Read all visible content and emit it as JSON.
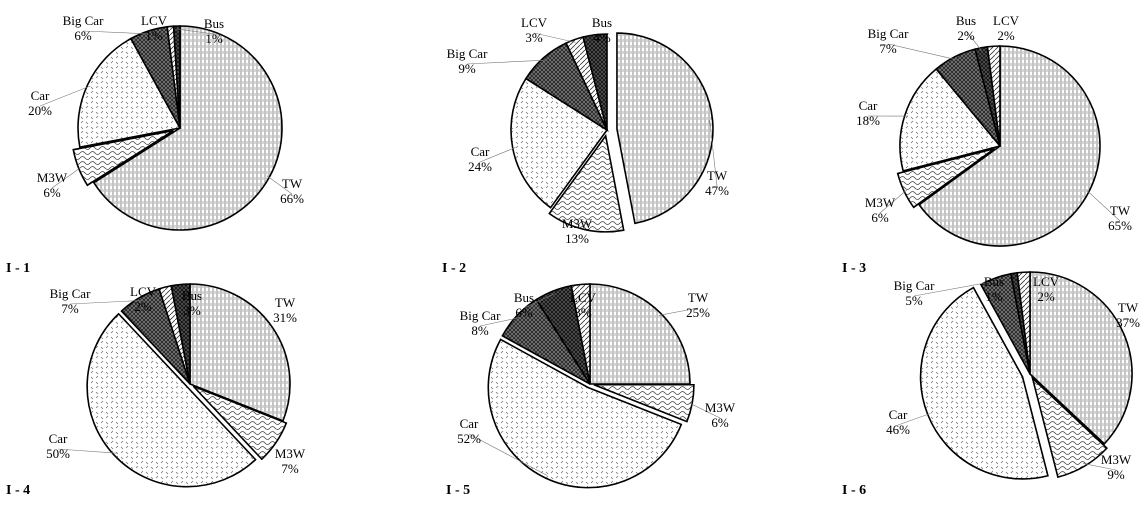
{
  "chart_data": [
    {
      "type": "pie",
      "panel_label": "I - 1",
      "categories": [
        "TW",
        "M3W",
        "Car",
        "Big Car",
        "LCV",
        "Bus"
      ],
      "values": [
        66,
        6,
        20,
        6,
        1,
        1
      ],
      "labels": [
        "66%",
        "6%",
        "20%",
        "6%",
        "1%",
        "1%"
      ]
    },
    {
      "type": "pie",
      "panel_label": "I - 2",
      "categories": [
        "TW",
        "M3W",
        "Car",
        "Big Car",
        "LCV",
        "Bus"
      ],
      "values": [
        47,
        13,
        24,
        9,
        3,
        4
      ],
      "labels": [
        "47%",
        "13%",
        "24%",
        "9%",
        "3%",
        "4%"
      ]
    },
    {
      "type": "pie",
      "panel_label": "I - 3",
      "categories": [
        "TW",
        "M3W",
        "Car",
        "Big Car",
        "Bus",
        "LCV"
      ],
      "values": [
        65,
        6,
        18,
        7,
        2,
        2
      ],
      "labels": [
        "65%",
        "6%",
        "18%",
        "7%",
        "2%",
        "2%"
      ]
    },
    {
      "type": "pie",
      "panel_label": "I - 4",
      "categories": [
        "TW",
        "M3W",
        "Car",
        "Big Car",
        "LCV",
        "Bus"
      ],
      "values": [
        31,
        7,
        50,
        7,
        2,
        3
      ],
      "labels": [
        "31%",
        "7%",
        "50%",
        "7%",
        "2%",
        "3%"
      ]
    },
    {
      "type": "pie",
      "panel_label": "I - 5",
      "categories": [
        "TW",
        "M3W",
        "Car",
        "Big Car",
        "Bus",
        "LCV"
      ],
      "values": [
        25,
        6,
        52,
        8,
        6,
        3
      ],
      "labels": [
        "25%",
        "6%",
        "52%",
        "8%",
        "6%",
        "3%"
      ]
    },
    {
      "type": "pie",
      "panel_label": "I - 6",
      "categories": [
        "TW",
        "M3W",
        "Car",
        "Big Car",
        "Bus",
        "LCV"
      ],
      "values": [
        37,
        9,
        46,
        5,
        1,
        2
      ],
      "labels": [
        "37%",
        "9%",
        "46%",
        "5%",
        "1%",
        "2%"
      ]
    }
  ]
}
